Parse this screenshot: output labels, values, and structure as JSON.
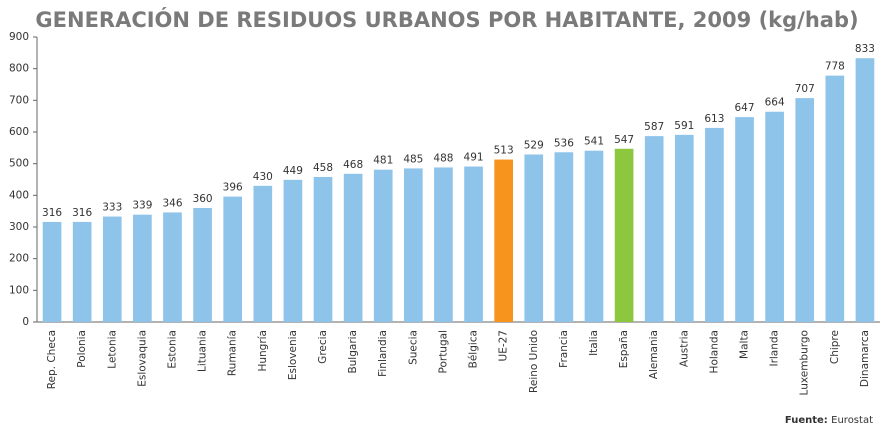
{
  "chart_data": {
    "type": "bar",
    "title": "GENERACIÓN DE RESIDUOS URBANOS POR HABITANTE, 2009  (kg/hab)",
    "categories": [
      "Rep. Checa",
      "Polonia",
      "Letonia",
      "Eslovaquia",
      "Estonia",
      "Lituania",
      "Rumanía",
      "Hungría",
      "Eslovenia",
      "Grecia",
      "Bulgaria",
      "Finlandia",
      "Suecia",
      "Portugal",
      "Bélgica",
      "UE-27",
      "Reino Unido",
      "Francia",
      "Italia",
      "España",
      "Alemania",
      "Austria",
      "Holanda",
      "Malta",
      "Irlanda",
      "Luxemburgo",
      "Chipre",
      "Dinamarca"
    ],
    "values": [
      316,
      316,
      333,
      339,
      346,
      360,
      396,
      430,
      449,
      458,
      468,
      481,
      485,
      488,
      491,
      513,
      529,
      536,
      541,
      547,
      587,
      591,
      613,
      647,
      664,
      707,
      778,
      833
    ],
    "colors": [
      "#8ec4e9",
      "#8ec4e9",
      "#8ec4e9",
      "#8ec4e9",
      "#8ec4e9",
      "#8ec4e9",
      "#8ec4e9",
      "#8ec4e9",
      "#8ec4e9",
      "#8ec4e9",
      "#8ec4e9",
      "#8ec4e9",
      "#8ec4e9",
      "#8ec4e9",
      "#8ec4e9",
      "#f7941d",
      "#8ec4e9",
      "#8ec4e9",
      "#8ec4e9",
      "#8dc63f",
      "#8ec4e9",
      "#8ec4e9",
      "#8ec4e9",
      "#8ec4e9",
      "#8ec4e9",
      "#8ec4e9",
      "#8ec4e9",
      "#8ec4e9"
    ],
    "ylim": [
      0,
      900
    ],
    "yticks": [
      0,
      100,
      200,
      300,
      400,
      500,
      600,
      700,
      800,
      900
    ],
    "grid": false,
    "source_label": "Fuente:",
    "source": "Eurostat"
  }
}
